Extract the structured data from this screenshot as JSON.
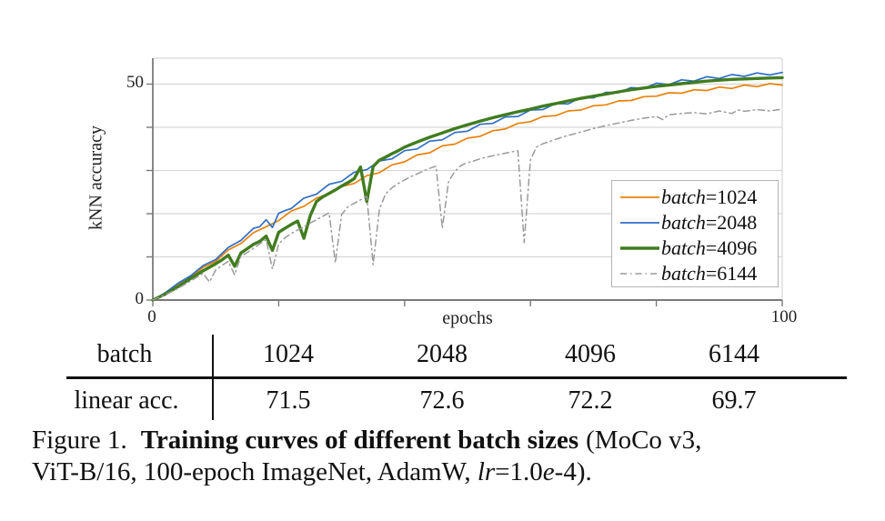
{
  "chart_data": {
    "type": "line",
    "title": "",
    "xlabel": "epochs",
    "ylabel": "kNN accuracy",
    "xlim": [
      0,
      100
    ],
    "ylim": [
      0,
      56
    ],
    "x_ticks": [
      0,
      20,
      40,
      60,
      80,
      100
    ],
    "y_ticks": [
      0,
      10,
      20,
      30,
      40,
      50
    ],
    "tick_labels": {
      "y_top": "50",
      "y_bottom": "0",
      "x_left": "0",
      "x_right": "100"
    },
    "grid": true,
    "legend_position": "lower right",
    "colors": {
      "grid": "#d7d7d7",
      "axis": "#7a7a7a"
    },
    "series": [
      {
        "name": "batch=1024",
        "legend_italic": "batch",
        "legend_rest": "=1024",
        "color": "#e8820c",
        "style": "solid",
        "width": 1.7,
        "points": [
          [
            0,
            0
          ],
          [
            2,
            1.6
          ],
          [
            4,
            3.5
          ],
          [
            6,
            5.3
          ],
          [
            8,
            7.6
          ],
          [
            10,
            9.0
          ],
          [
            12,
            11.6
          ],
          [
            14,
            13.1
          ],
          [
            16,
            15.6
          ],
          [
            18,
            17.0
          ],
          [
            20,
            18.4
          ],
          [
            22,
            20.6
          ],
          [
            24,
            21.7
          ],
          [
            26,
            23.6
          ],
          [
            28,
            24.6
          ],
          [
            30,
            26.3
          ],
          [
            32,
            27.0
          ],
          [
            34,
            28.8
          ],
          [
            36,
            29.5
          ],
          [
            38,
            31.3
          ],
          [
            40,
            32.0
          ],
          [
            42,
            33.6
          ],
          [
            44,
            34.1
          ],
          [
            46,
            35.7
          ],
          [
            48,
            36.1
          ],
          [
            50,
            37.5
          ],
          [
            52,
            37.9
          ],
          [
            54,
            39.2
          ],
          [
            56,
            39.6
          ],
          [
            58,
            40.9
          ],
          [
            60,
            41.3
          ],
          [
            62,
            42.5
          ],
          [
            64,
            42.7
          ],
          [
            66,
            43.8
          ],
          [
            68,
            44.0
          ],
          [
            70,
            45.0
          ],
          [
            72,
            45.2
          ],
          [
            74,
            46.1
          ],
          [
            76,
            46.2
          ],
          [
            78,
            47.1
          ],
          [
            80,
            47.2
          ],
          [
            82,
            48.0
          ],
          [
            84,
            47.9
          ],
          [
            86,
            48.7
          ],
          [
            88,
            48.5
          ],
          [
            90,
            49.3
          ],
          [
            92,
            49.0
          ],
          [
            94,
            49.8
          ],
          [
            96,
            49.4
          ],
          [
            98,
            50.1
          ],
          [
            100,
            49.8
          ]
        ]
      },
      {
        "name": "batch=2048",
        "legend_italic": "batch",
        "legend_rest": "=2048",
        "color": "#2f6ec7",
        "style": "solid",
        "width": 1.7,
        "points": [
          [
            0,
            0
          ],
          [
            2,
            1.7
          ],
          [
            4,
            3.9
          ],
          [
            6,
            5.6
          ],
          [
            8,
            8.0
          ],
          [
            10,
            9.4
          ],
          [
            12,
            12.2
          ],
          [
            14,
            13.8
          ],
          [
            16,
            16.6
          ],
          [
            17,
            17.0
          ],
          [
            18,
            18.6
          ],
          [
            19,
            16.8
          ],
          [
            20,
            20.1
          ],
          [
            21,
            20.7
          ],
          [
            22,
            21.2
          ],
          [
            24,
            23.6
          ],
          [
            26,
            24.5
          ],
          [
            28,
            26.8
          ],
          [
            30,
            27.5
          ],
          [
            32,
            29.6
          ],
          [
            34,
            30.2
          ],
          [
            36,
            32.2
          ],
          [
            38,
            32.7
          ],
          [
            40,
            34.6
          ],
          [
            42,
            35.0
          ],
          [
            44,
            36.8
          ],
          [
            46,
            37.1
          ],
          [
            48,
            38.8
          ],
          [
            50,
            39.1
          ],
          [
            52,
            40.7
          ],
          [
            54,
            40.9
          ],
          [
            56,
            42.4
          ],
          [
            58,
            42.5
          ],
          [
            60,
            44.0
          ],
          [
            62,
            44.1
          ],
          [
            64,
            45.5
          ],
          [
            66,
            45.4
          ],
          [
            68,
            46.9
          ],
          [
            70,
            46.8
          ],
          [
            72,
            48.1
          ],
          [
            74,
            48.0
          ],
          [
            76,
            49.2
          ],
          [
            78,
            49.0
          ],
          [
            80,
            50.2
          ],
          [
            82,
            49.9
          ],
          [
            84,
            51.0
          ],
          [
            86,
            50.7
          ],
          [
            88,
            51.7
          ],
          [
            90,
            51.3
          ],
          [
            92,
            52.2
          ],
          [
            94,
            51.8
          ],
          [
            96,
            52.6
          ],
          [
            98,
            52.1
          ],
          [
            100,
            52.7
          ]
        ]
      },
      {
        "name": "batch=4096",
        "legend_italic": "batch",
        "legend_rest": "=4096",
        "color": "#417c1f",
        "style": "solid",
        "width": 3.4,
        "points": [
          [
            0,
            0
          ],
          [
            2,
            1.4
          ],
          [
            4,
            3.1
          ],
          [
            6,
            5.0
          ],
          [
            8,
            6.8
          ],
          [
            10,
            8.4
          ],
          [
            11,
            9.3
          ],
          [
            12,
            10.4
          ],
          [
            13,
            7.8
          ],
          [
            14,
            10.9
          ],
          [
            15,
            11.9
          ],
          [
            16,
            12.9
          ],
          [
            17,
            13.6
          ],
          [
            18,
            14.8
          ],
          [
            19,
            11.5
          ],
          [
            20,
            15.7
          ],
          [
            21,
            16.6
          ],
          [
            22,
            17.5
          ],
          [
            23,
            18.3
          ],
          [
            24,
            14.3
          ],
          [
            25,
            19.5
          ],
          [
            26,
            22.8
          ],
          [
            27,
            23.9
          ],
          [
            28,
            24.7
          ],
          [
            29,
            25.5
          ],
          [
            30,
            26.4
          ],
          [
            31,
            27.2
          ],
          [
            32,
            28.1
          ],
          [
            33,
            30.8
          ],
          [
            34,
            22.8
          ],
          [
            35,
            30.9
          ],
          [
            36,
            32.4
          ],
          [
            37,
            33.1
          ],
          [
            38,
            33.9
          ],
          [
            39,
            34.6
          ],
          [
            40,
            35.4
          ],
          [
            42,
            36.6
          ],
          [
            44,
            37.7
          ],
          [
            46,
            38.7
          ],
          [
            48,
            39.7
          ],
          [
            50,
            40.6
          ],
          [
            52,
            41.4
          ],
          [
            54,
            42.2
          ],
          [
            56,
            42.9
          ],
          [
            58,
            43.6
          ],
          [
            60,
            44.2
          ],
          [
            62,
            44.9
          ],
          [
            64,
            45.5
          ],
          [
            66,
            46.1
          ],
          [
            68,
            46.7
          ],
          [
            70,
            47.2
          ],
          [
            72,
            47.7
          ],
          [
            74,
            48.2
          ],
          [
            76,
            48.7
          ],
          [
            78,
            49.1
          ],
          [
            80,
            49.5
          ],
          [
            82,
            49.8
          ],
          [
            84,
            50.1
          ],
          [
            86,
            50.4
          ],
          [
            88,
            50.7
          ],
          [
            90,
            50.9
          ],
          [
            92,
            51.1
          ],
          [
            94,
            51.2
          ],
          [
            96,
            51.3
          ],
          [
            98,
            51.4
          ],
          [
            100,
            51.5
          ]
        ]
      },
      {
        "name": "batch=6144",
        "legend_italic": "batch",
        "legend_rest": "=6144",
        "color": "#9a9a9a",
        "style": "dashdot",
        "width": 1.5,
        "dash": "7 4 1.5 4",
        "points": [
          [
            0,
            0
          ],
          [
            2,
            1.2
          ],
          [
            4,
            2.7
          ],
          [
            6,
            4.4
          ],
          [
            8,
            6.2
          ],
          [
            9,
            4.2
          ],
          [
            10,
            7.0
          ],
          [
            11,
            8.0
          ],
          [
            12,
            9.0
          ],
          [
            13,
            5.8
          ],
          [
            14,
            10.2
          ],
          [
            15,
            11.0
          ],
          [
            16,
            12.0
          ],
          [
            17,
            13.0
          ],
          [
            18,
            14.0
          ],
          [
            19,
            7.2
          ],
          [
            20,
            13.0
          ],
          [
            21,
            14.4
          ],
          [
            22,
            15.4
          ],
          [
            23,
            16.2
          ],
          [
            24,
            17.0
          ],
          [
            25,
            17.8
          ],
          [
            26,
            18.6
          ],
          [
            27,
            19.4
          ],
          [
            28,
            20.2
          ],
          [
            29,
            8.6
          ],
          [
            30,
            19.8
          ],
          [
            31,
            21.6
          ],
          [
            32,
            22.4
          ],
          [
            33,
            23.2
          ],
          [
            34,
            24.0
          ],
          [
            35,
            8.2
          ],
          [
            36,
            21.0
          ],
          [
            37,
            24.6
          ],
          [
            38,
            26.0
          ],
          [
            39,
            27.0
          ],
          [
            40,
            27.8
          ],
          [
            41,
            28.6
          ],
          [
            42,
            29.2
          ],
          [
            43,
            29.9
          ],
          [
            44,
            30.5
          ],
          [
            45,
            31.0
          ],
          [
            46,
            16.6
          ],
          [
            47,
            27.5
          ],
          [
            48,
            29.8
          ],
          [
            49,
            31.2
          ],
          [
            50,
            31.8
          ],
          [
            51,
            32.2
          ],
          [
            52,
            32.7
          ],
          [
            53,
            33.1
          ],
          [
            54,
            33.4
          ],
          [
            55,
            33.7
          ],
          [
            56,
            34.0
          ],
          [
            57,
            34.3
          ],
          [
            58,
            34.6
          ],
          [
            59,
            13.3
          ],
          [
            60,
            32.5
          ],
          [
            61,
            35.5
          ],
          [
            62,
            36.2
          ],
          [
            63,
            36.7
          ],
          [
            64,
            37.2
          ],
          [
            65,
            37.7
          ],
          [
            66,
            38.1
          ],
          [
            67,
            38.5
          ],
          [
            68,
            38.9
          ],
          [
            70,
            39.7
          ],
          [
            72,
            40.4
          ],
          [
            74,
            41.0
          ],
          [
            76,
            41.6
          ],
          [
            78,
            42.1
          ],
          [
            80,
            42.5
          ],
          [
            81,
            41.8
          ],
          [
            82,
            42.9
          ],
          [
            84,
            43.2
          ],
          [
            86,
            43.4
          ],
          [
            88,
            43.1
          ],
          [
            90,
            43.8
          ],
          [
            92,
            43.2
          ],
          [
            93,
            44.0
          ],
          [
            94,
            43.7
          ],
          [
            96,
            44.1
          ],
          [
            98,
            43.8
          ],
          [
            100,
            44.2
          ]
        ]
      }
    ]
  },
  "table": {
    "rows": [
      {
        "label": "batch",
        "values": [
          "1024",
          "2048",
          "4096",
          "6144"
        ]
      },
      {
        "label": "linear acc.",
        "values": [
          "71.5",
          "72.6",
          "72.2",
          "69.7"
        ]
      }
    ]
  },
  "caption": {
    "line1_prefix": "Figure 1.",
    "line1_bold": "Training curves of different batch sizes",
    "line1_rest": "(MoCo v3,",
    "line2_start": "ViT-B/16, 100-epoch ImageNet, AdamW,",
    "line2_lr": "lr",
    "line2_mid": "=1.0",
    "line2_e": "e",
    "line2_end": "-4)."
  }
}
